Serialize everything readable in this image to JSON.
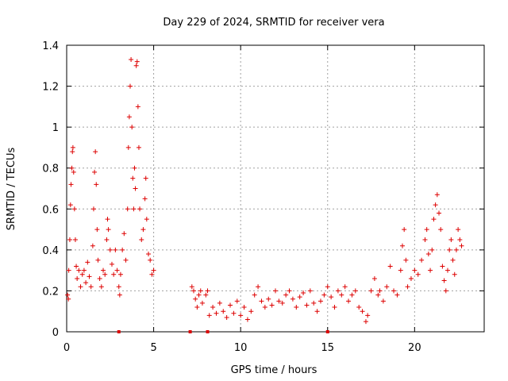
{
  "chart_data": {
    "type": "scatter",
    "title": "Day 229 of 2024, SRMTID for receiver vera",
    "xlabel": "GPS time / hours",
    "ylabel": "SRMTID / TECUs",
    "xlim": [
      0,
      24
    ],
    "ylim": [
      0,
      1.4
    ],
    "xticks": [
      0,
      5,
      10,
      15,
      20
    ],
    "xtick_labels": [
      "0",
      "5",
      "10",
      "15",
      "20"
    ],
    "yticks": [
      0,
      0.2,
      0.4,
      0.6,
      0.8,
      1.0,
      1.2,
      1.4
    ],
    "ytick_labels": [
      "0",
      "0.2",
      "0.4",
      "0.6",
      "0.8",
      "1",
      "1.2",
      "1.4"
    ],
    "grid": true,
    "marker": "+",
    "marker_color": "#dd0000",
    "series": [
      {
        "name": "SRMTID",
        "points": [
          [
            0.05,
            0.18
          ],
          [
            0.1,
            0.16
          ],
          [
            0.12,
            0.3
          ],
          [
            0.18,
            0.45
          ],
          [
            0.22,
            0.62
          ],
          [
            0.25,
            0.72
          ],
          [
            0.3,
            0.8
          ],
          [
            0.33,
            0.88
          ],
          [
            0.36,
            0.9
          ],
          [
            0.4,
            0.78
          ],
          [
            0.45,
            0.6
          ],
          [
            0.5,
            0.45
          ],
          [
            0.55,
            0.32
          ],
          [
            0.6,
            0.26
          ],
          [
            0.7,
            0.3
          ],
          [
            0.8,
            0.22
          ],
          [
            0.9,
            0.28
          ],
          [
            1.0,
            0.3
          ],
          [
            1.1,
            0.24
          ],
          [
            1.2,
            0.34
          ],
          [
            1.3,
            0.27
          ],
          [
            1.4,
            0.22
          ],
          [
            1.5,
            0.42
          ],
          [
            1.55,
            0.6
          ],
          [
            1.6,
            0.78
          ],
          [
            1.65,
            0.88
          ],
          [
            1.7,
            0.72
          ],
          [
            1.75,
            0.5
          ],
          [
            1.8,
            0.35
          ],
          [
            1.9,
            0.26
          ],
          [
            2.0,
            0.22
          ],
          [
            2.1,
            0.3
          ],
          [
            2.2,
            0.28
          ],
          [
            2.3,
            0.45
          ],
          [
            2.35,
            0.55
          ],
          [
            2.4,
            0.5
          ],
          [
            2.5,
            0.4
          ],
          [
            2.6,
            0.33
          ],
          [
            2.7,
            0.28
          ],
          [
            2.8,
            0.4
          ],
          [
            2.9,
            0.3
          ],
          [
            3.0,
            0.22
          ],
          [
            3.05,
            0.18
          ],
          [
            3.1,
            0.28
          ],
          [
            3.2,
            0.4
          ],
          [
            3.3,
            0.48
          ],
          [
            3.4,
            0.35
          ],
          [
            3.5,
            0.6
          ],
          [
            3.55,
            0.9
          ],
          [
            3.6,
            1.05
          ],
          [
            3.65,
            1.2
          ],
          [
            3.7,
            1.33
          ],
          [
            3.75,
            1.0
          ],
          [
            3.8,
            0.75
          ],
          [
            3.85,
            0.6
          ],
          [
            3.9,
            0.8
          ],
          [
            3.95,
            0.7
          ],
          [
            4.0,
            1.3
          ],
          [
            4.05,
            1.32
          ],
          [
            4.1,
            1.1
          ],
          [
            4.15,
            0.9
          ],
          [
            4.2,
            0.6
          ],
          [
            4.3,
            0.45
          ],
          [
            4.4,
            0.5
          ],
          [
            4.5,
            0.65
          ],
          [
            4.55,
            0.75
          ],
          [
            4.6,
            0.55
          ],
          [
            4.7,
            0.38
          ],
          [
            4.8,
            0.35
          ],
          [
            4.9,
            0.28
          ],
          [
            5.0,
            0.3
          ],
          [
            7.2,
            0.22
          ],
          [
            7.3,
            0.2
          ],
          [
            7.4,
            0.16
          ],
          [
            7.5,
            0.12
          ],
          [
            7.6,
            0.18
          ],
          [
            7.7,
            0.2
          ],
          [
            7.8,
            0.14
          ],
          [
            8.0,
            0.18
          ],
          [
            8.1,
            0.2
          ],
          [
            8.2,
            0.08
          ],
          [
            8.4,
            0.12
          ],
          [
            8.6,
            0.09
          ],
          [
            8.8,
            0.14
          ],
          [
            9.0,
            0.1
          ],
          [
            9.2,
            0.07
          ],
          [
            9.4,
            0.13
          ],
          [
            9.6,
            0.09
          ],
          [
            9.8,
            0.15
          ],
          [
            10.0,
            0.08
          ],
          [
            10.2,
            0.12
          ],
          [
            10.4,
            0.06
          ],
          [
            10.6,
            0.1
          ],
          [
            10.8,
            0.18
          ],
          [
            11.0,
            0.22
          ],
          [
            11.2,
            0.15
          ],
          [
            11.4,
            0.12
          ],
          [
            11.6,
            0.16
          ],
          [
            11.8,
            0.13
          ],
          [
            12.0,
            0.2
          ],
          [
            12.2,
            0.15
          ],
          [
            12.4,
            0.14
          ],
          [
            12.6,
            0.18
          ],
          [
            12.8,
            0.2
          ],
          [
            13.0,
            0.16
          ],
          [
            13.2,
            0.12
          ],
          [
            13.4,
            0.17
          ],
          [
            13.6,
            0.19
          ],
          [
            13.8,
            0.13
          ],
          [
            14.0,
            0.2
          ],
          [
            14.2,
            0.14
          ],
          [
            14.4,
            0.1
          ],
          [
            14.6,
            0.15
          ],
          [
            14.8,
            0.18
          ],
          [
            15.0,
            0.22
          ],
          [
            15.2,
            0.17
          ],
          [
            15.4,
            0.12
          ],
          [
            15.6,
            0.2
          ],
          [
            15.8,
            0.18
          ],
          [
            16.0,
            0.22
          ],
          [
            16.2,
            0.15
          ],
          [
            16.4,
            0.18
          ],
          [
            16.6,
            0.2
          ],
          [
            16.8,
            0.12
          ],
          [
            17.0,
            0.1
          ],
          [
            17.2,
            0.05
          ],
          [
            17.3,
            0.08
          ],
          [
            17.5,
            0.2
          ],
          [
            17.7,
            0.26
          ],
          [
            17.9,
            0.18
          ],
          [
            18.0,
            0.2
          ],
          [
            18.2,
            0.15
          ],
          [
            18.4,
            0.22
          ],
          [
            18.6,
            0.32
          ],
          [
            18.8,
            0.2
          ],
          [
            19.0,
            0.18
          ],
          [
            19.2,
            0.3
          ],
          [
            19.3,
            0.42
          ],
          [
            19.4,
            0.5
          ],
          [
            19.5,
            0.35
          ],
          [
            19.6,
            0.22
          ],
          [
            19.8,
            0.26
          ],
          [
            20.0,
            0.3
          ],
          [
            20.2,
            0.28
          ],
          [
            20.4,
            0.35
          ],
          [
            20.6,
            0.45
          ],
          [
            20.7,
            0.5
          ],
          [
            20.8,
            0.38
          ],
          [
            20.9,
            0.3
          ],
          [
            21.0,
            0.4
          ],
          [
            21.1,
            0.55
          ],
          [
            21.2,
            0.62
          ],
          [
            21.3,
            0.67
          ],
          [
            21.4,
            0.58
          ],
          [
            21.5,
            0.5
          ],
          [
            21.6,
            0.32
          ],
          [
            21.7,
            0.25
          ],
          [
            21.8,
            0.2
          ],
          [
            21.9,
            0.3
          ],
          [
            22.0,
            0.4
          ],
          [
            22.1,
            0.45
          ],
          [
            22.2,
            0.35
          ],
          [
            22.3,
            0.28
          ],
          [
            22.4,
            0.4
          ],
          [
            22.5,
            0.5
          ],
          [
            22.6,
            0.45
          ],
          [
            22.7,
            0.42
          ]
        ]
      }
    ],
    "zero_markers_x": [
      3.0,
      7.1,
      8.1,
      15.0
    ]
  }
}
